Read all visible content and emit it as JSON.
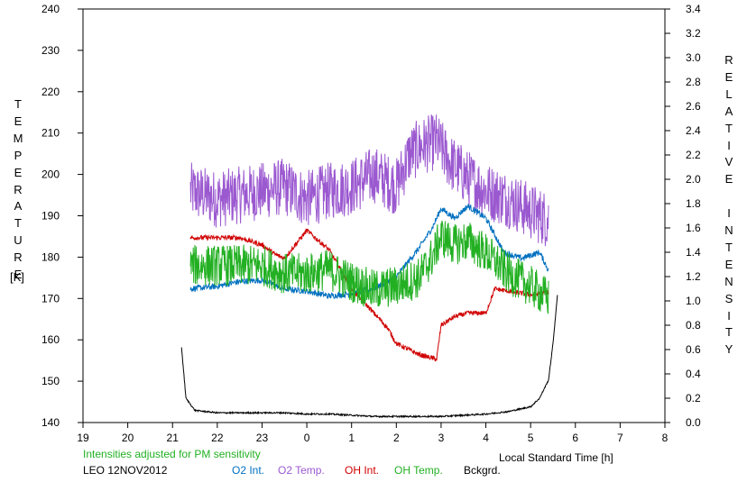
{
  "chart_data": {
    "type": "line",
    "left_axis": {
      "letters": [
        "T",
        "E",
        "M",
        "P",
        "E",
        "R",
        "A",
        "T",
        "U",
        "R",
        "E"
      ],
      "unit": "[K]",
      "ylim": [
        140,
        240
      ],
      "ticks": [
        "140",
        "150",
        "160",
        "170",
        "180",
        "190",
        "200",
        "210",
        "220",
        "230",
        "240"
      ]
    },
    "right_axis": {
      "letters": [
        "R",
        "E",
        "L",
        "A",
        "T",
        "I",
        "V",
        "E",
        "",
        "I",
        "N",
        "T",
        "E",
        "N",
        "S",
        "I",
        "T",
        "Y"
      ],
      "ylim": [
        0.0,
        3.4
      ],
      "ticks": [
        "0.0",
        "0.2",
        "0.4",
        "0.6",
        "0.8",
        "1.0",
        "1.2",
        "1.4",
        "1.6",
        "1.8",
        "2.0",
        "2.2",
        "2.4",
        "2.6",
        "2.8",
        "3.0",
        "3.2",
        "3.4"
      ]
    },
    "x_axis": {
      "title": "Local Standard Time [h]",
      "ticks": [
        "19",
        "20",
        "21",
        "22",
        "23",
        "0",
        "1",
        "2",
        "3",
        "4",
        "5",
        "6",
        "7",
        "8"
      ]
    },
    "note": "Intensities adjusted for PM sensitivity",
    "station": "LEO 12NOV2012",
    "legend": [
      {
        "name": "O2 Int.",
        "color": "#0070c0"
      },
      {
        "name": "O2 Temp.",
        "color": "#9b59d0"
      },
      {
        "name": "OH Int.",
        "color": "#d00000"
      },
      {
        "name": "OH Temp.",
        "color": "#22b022"
      },
      {
        "name": "Bckgrd.",
        "color": "#000000"
      }
    ],
    "series": [
      {
        "name": "O2 Temp.",
        "axis": "left",
        "color": "#9b59d0",
        "noise": 7,
        "x": [
          21.4,
          22,
          22.5,
          23,
          23.5,
          24,
          24.5,
          25,
          25.5,
          26,
          26.3,
          26.6,
          26.9,
          27.2,
          27.6,
          28,
          28.5,
          29,
          29.4
        ],
        "y": [
          196,
          194,
          195,
          196,
          197,
          194,
          196,
          197,
          200,
          197,
          205,
          207,
          208,
          203,
          199,
          196,
          194,
          191,
          189
        ]
      },
      {
        "name": "O2 Int.",
        "axis": "right",
        "color": "#0070c0",
        "noise": 0.025,
        "x": [
          21.4,
          22,
          22.5,
          23,
          23.5,
          24,
          24.5,
          25,
          25.5,
          26,
          26.5,
          26.8,
          27,
          27.3,
          27.6,
          28,
          28.4,
          28.8,
          29.2,
          29.4
        ],
        "y": [
          1.1,
          1.12,
          1.16,
          1.17,
          1.1,
          1.08,
          1.04,
          1.06,
          1.1,
          1.2,
          1.43,
          1.6,
          1.76,
          1.68,
          1.78,
          1.68,
          1.4,
          1.35,
          1.4,
          1.25
        ]
      },
      {
        "name": "OH Int.",
        "axis": "right",
        "color": "#d00000",
        "noise": 0.02,
        "x": [
          21.4,
          22,
          22.5,
          23,
          23.3,
          23.5,
          24,
          24.5,
          25,
          25.5,
          25.8,
          26,
          26.5,
          26.9,
          27,
          27.3,
          27.6,
          28,
          28.2,
          28.5,
          29,
          29.4
        ],
        "y": [
          1.52,
          1.52,
          1.52,
          1.46,
          1.38,
          1.35,
          1.58,
          1.42,
          1.1,
          0.9,
          0.78,
          0.65,
          0.56,
          0.52,
          0.8,
          0.87,
          0.9,
          0.9,
          1.1,
          1.08,
          1.05,
          1.07
        ]
      },
      {
        "name": "OH Temp.",
        "axis": "left",
        "color": "#22b022",
        "noise": 5,
        "x": [
          21.4,
          22,
          22.5,
          23,
          23.5,
          24,
          24.5,
          25,
          25.5,
          26,
          26.5,
          26.8,
          27,
          27.3,
          27.6,
          28,
          28.5,
          29,
          29.4
        ],
        "y": [
          178,
          178,
          178,
          178,
          176,
          176,
          177,
          174,
          172,
          173,
          175,
          180,
          185,
          183,
          184,
          181,
          176,
          173,
          170
        ]
      },
      {
        "name": "Bckgrd.",
        "axis": "right",
        "color": "#000000",
        "noise": 0.006,
        "x": [
          21.2,
          21.3,
          21.5,
          22,
          22.5,
          23,
          23.5,
          24,
          24.5,
          25,
          25.5,
          26,
          26.5,
          27,
          27.5,
          28,
          28.5,
          29,
          29.2,
          29.4,
          29.5,
          29.6
        ],
        "y": [
          0.62,
          0.2,
          0.1,
          0.08,
          0.08,
          0.08,
          0.08,
          0.07,
          0.07,
          0.06,
          0.05,
          0.05,
          0.05,
          0.05,
          0.06,
          0.07,
          0.09,
          0.13,
          0.2,
          0.35,
          0.65,
          1.05
        ]
      }
    ]
  }
}
